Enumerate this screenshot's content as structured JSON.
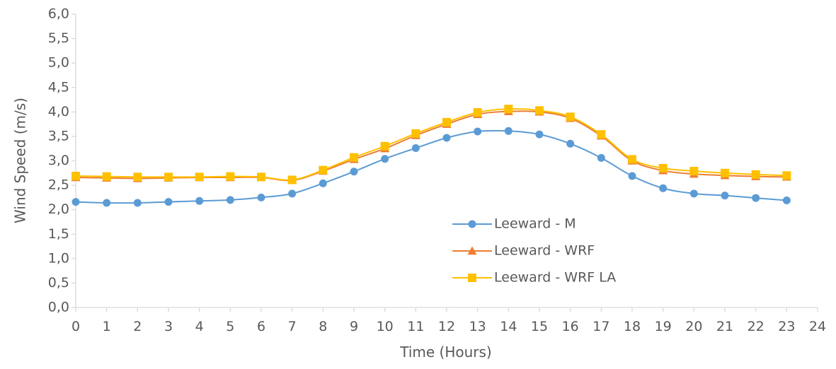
{
  "chart_data": {
    "type": "line",
    "title": "",
    "xlabel": "Time (Hours)",
    "ylabel": "Wind Speed (m/s)",
    "xlim": [
      0,
      24
    ],
    "ylim": [
      0,
      6
    ],
    "x_ticks": [
      "0",
      "1",
      "2",
      "3",
      "4",
      "5",
      "6",
      "7",
      "8",
      "9",
      "10",
      "11",
      "12",
      "13",
      "14",
      "15",
      "16",
      "17",
      "18",
      "19",
      "20",
      "21",
      "22",
      "23",
      "24"
    ],
    "y_ticks": [
      "0,0",
      "0,5",
      "1,0",
      "1,5",
      "2,0",
      "2,5",
      "3,0",
      "3,5",
      "4,0",
      "4,5",
      "5,0",
      "5,5",
      "6,0"
    ],
    "grid": false,
    "legend_position": "lower-center",
    "x": [
      0,
      1,
      2,
      3,
      4,
      5,
      6,
      7,
      8,
      9,
      10,
      11,
      12,
      13,
      14,
      15,
      16,
      17,
      18,
      19,
      20,
      21,
      22,
      23
    ],
    "series": [
      {
        "name": "Leeward - M",
        "color": "#5B9BD5",
        "marker": "circle",
        "values": [
          2.16,
          2.14,
          2.14,
          2.16,
          2.18,
          2.2,
          2.25,
          2.33,
          2.54,
          2.78,
          3.04,
          3.26,
          3.47,
          3.6,
          3.61,
          3.54,
          3.35,
          3.06,
          2.69,
          2.44,
          2.33,
          2.29,
          2.24,
          2.19
        ]
      },
      {
        "name": "Leeward - WRF",
        "color": "#ED7D31",
        "marker": "triangle",
        "values": [
          2.66,
          2.65,
          2.64,
          2.65,
          2.66,
          2.66,
          2.66,
          2.6,
          2.79,
          3.03,
          3.25,
          3.52,
          3.75,
          3.95,
          4.01,
          4.0,
          3.87,
          3.51,
          3.0,
          2.8,
          2.73,
          2.7,
          2.68,
          2.67
        ]
      },
      {
        "name": "Leeward - WRF LA",
        "color": "#FFC000",
        "marker": "square",
        "values": [
          2.69,
          2.68,
          2.67,
          2.67,
          2.67,
          2.68,
          2.67,
          2.61,
          2.81,
          3.07,
          3.3,
          3.56,
          3.79,
          3.99,
          4.06,
          4.03,
          3.9,
          3.54,
          3.03,
          2.85,
          2.79,
          2.75,
          2.72,
          2.7
        ]
      }
    ]
  }
}
